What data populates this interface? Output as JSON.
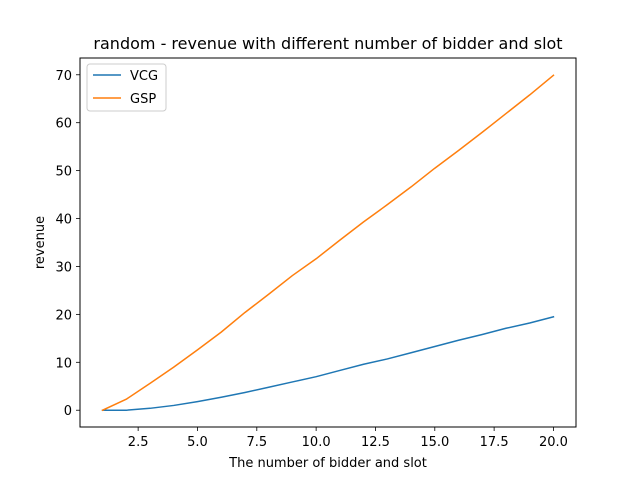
{
  "chart_data": {
    "type": "line",
    "title": "random - revenue with different number of bidder and slot",
    "xlabel": "The number of bidder and slot",
    "ylabel": "revenue",
    "xlim": [
      0.05,
      20.95
    ],
    "ylim": [
      -3.5,
      73.5
    ],
    "x_ticks": [
      2.5,
      5.0,
      7.5,
      10.0,
      12.5,
      15.0,
      17.5,
      20.0
    ],
    "x_tick_labels": [
      "2.5",
      "5.0",
      "7.5",
      "10.0",
      "12.5",
      "15.0",
      "17.5",
      "20.0"
    ],
    "y_ticks": [
      0,
      10,
      20,
      30,
      40,
      50,
      60,
      70
    ],
    "y_tick_labels": [
      "0",
      "10",
      "20",
      "30",
      "40",
      "50",
      "60",
      "70"
    ],
    "grid": false,
    "legend_position": "top-left",
    "x": [
      1,
      2,
      3,
      4,
      5,
      6,
      7,
      8,
      9,
      10,
      11,
      12,
      13,
      14,
      15,
      16,
      17,
      18,
      19,
      20
    ],
    "series": [
      {
        "name": "VCG",
        "color": "#1f77b4",
        "values": [
          0.0,
          0.0,
          0.4,
          1.0,
          1.8,
          2.7,
          3.7,
          4.8,
          5.9,
          7.0,
          8.3,
          9.6,
          10.7,
          12.0,
          13.3,
          14.6,
          15.8,
          17.1,
          18.2,
          19.5
        ]
      },
      {
        "name": "GSP",
        "color": "#ff7f0e",
        "values": [
          0.0,
          2.3,
          5.6,
          9.0,
          12.6,
          16.3,
          20.4,
          24.2,
          28.1,
          31.6,
          35.5,
          39.3,
          42.9,
          46.6,
          50.5,
          54.2,
          58.0,
          61.9,
          65.8,
          69.9
        ]
      }
    ]
  }
}
